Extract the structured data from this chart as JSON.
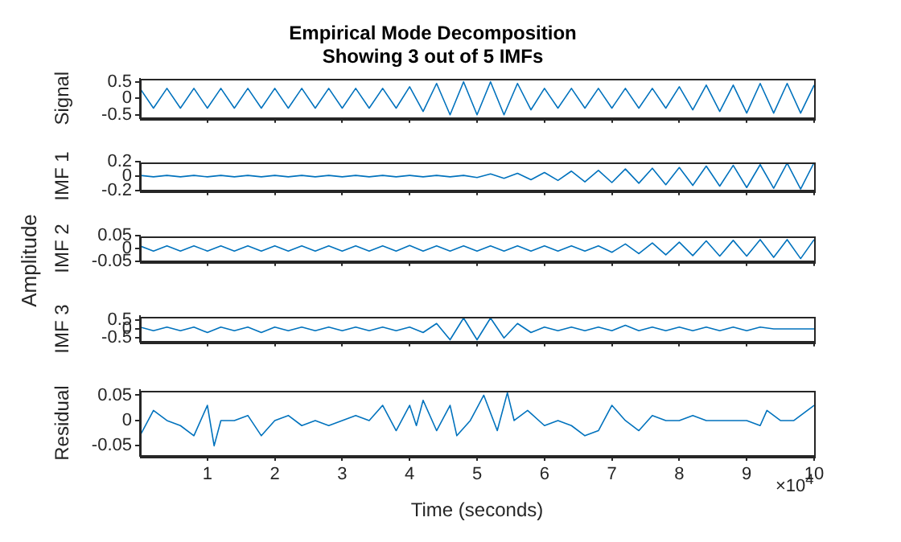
{
  "chart_data": [
    {
      "type": "line",
      "title": "Empirical Mode Decomposition",
      "subtitle": "Showing 3 out of 5 IMFs",
      "ylabel": "Signal",
      "tick_labels": "y",
      "xlim": [
        0,
        10
      ],
      "xticks": [
        1,
        2,
        3,
        4,
        5,
        6,
        7,
        8,
        9,
        10
      ],
      "ylim": [
        -0.6,
        0.6
      ],
      "yticks": [
        -0.5,
        0,
        0.5
      ],
      "x": [
        0,
        0.2,
        0.4,
        0.6,
        0.8,
        1,
        1.2,
        1.4,
        1.6,
        1.8,
        2,
        2.2,
        2.4,
        2.6,
        2.8,
        3,
        3.2,
        3.4,
        3.6,
        3.8,
        4,
        4.2,
        4.4,
        4.6,
        4.8,
        5,
        5.2,
        5.4,
        5.6,
        5.8,
        6,
        6.2,
        6.4,
        6.6,
        6.8,
        7,
        7.2,
        7.4,
        7.6,
        7.8,
        8,
        8.2,
        8.4,
        8.6,
        8.8,
        9,
        9.2,
        9.4,
        9.6,
        9.8,
        10
      ],
      "series": [
        {
          "color": "#0072bd",
          "values": [
            0.3,
            -0.3,
            0.3,
            -0.3,
            0.3,
            -0.3,
            0.3,
            -0.3,
            0.3,
            -0.3,
            0.3,
            -0.3,
            0.3,
            -0.3,
            0.3,
            -0.3,
            0.3,
            -0.3,
            0.3,
            -0.3,
            0.35,
            -0.4,
            0.45,
            -0.5,
            0.5,
            -0.5,
            0.5,
            -0.5,
            0.45,
            -0.35,
            0.3,
            -0.3,
            0.3,
            -0.3,
            0.3,
            -0.3,
            0.3,
            -0.3,
            0.3,
            -0.3,
            0.35,
            -0.35,
            0.4,
            -0.4,
            0.4,
            -0.45,
            0.45,
            -0.45,
            0.45,
            -0.45,
            0.4
          ]
        }
      ]
    },
    {
      "type": "line",
      "ylabel": "IMF 1",
      "tick_labels": "y",
      "xlim": [
        0,
        10
      ],
      "xticks": [
        1,
        2,
        3,
        4,
        5,
        6,
        7,
        8,
        9,
        10
      ],
      "ylim": [
        -0.2,
        0.2
      ],
      "yticks": [
        -0.2,
        0,
        0.2
      ],
      "x": [
        0,
        0.2,
        0.4,
        0.6,
        0.8,
        1,
        1.2,
        1.4,
        1.6,
        1.8,
        2,
        2.2,
        2.4,
        2.6,
        2.8,
        3,
        3.2,
        3.4,
        3.6,
        3.8,
        4,
        4.2,
        4.4,
        4.6,
        4.8,
        5,
        5.2,
        5.4,
        5.6,
        5.8,
        6,
        6.2,
        6.4,
        6.6,
        6.8,
        7,
        7.2,
        7.4,
        7.6,
        7.8,
        8,
        8.2,
        8.4,
        8.6,
        8.8,
        9,
        9.2,
        9.4,
        9.6,
        9.8,
        10
      ],
      "series": [
        {
          "color": "#0072bd",
          "values": [
            0.01,
            -0.01,
            0.01,
            -0.01,
            0.01,
            -0.01,
            0.01,
            -0.01,
            0.01,
            -0.01,
            0.01,
            -0.01,
            0.01,
            -0.01,
            0.01,
            -0.01,
            0.01,
            -0.01,
            0.01,
            -0.01,
            0.01,
            -0.01,
            0.01,
            -0.01,
            0.01,
            -0.02,
            0.03,
            -0.03,
            0.04,
            -0.05,
            0.05,
            -0.06,
            0.07,
            -0.08,
            0.08,
            -0.09,
            0.1,
            -0.1,
            0.11,
            -0.12,
            0.12,
            -0.13,
            0.14,
            -0.14,
            0.15,
            -0.16,
            0.16,
            -0.17,
            0.18,
            -0.18,
            0.19
          ]
        }
      ]
    },
    {
      "type": "line",
      "ylabel": "IMF 2",
      "tick_labels": "y",
      "annotations": [
        "Amplitude"
      ],
      "xlim": [
        0,
        10
      ],
      "xticks": [
        1,
        2,
        3,
        4,
        5,
        6,
        7,
        8,
        9,
        10
      ],
      "ylim": [
        -0.05,
        0.05
      ],
      "yticks": [
        -0.05,
        0,
        0.05
      ],
      "x": [
        0,
        0.2,
        0.4,
        0.6,
        0.8,
        1,
        1.2,
        1.4,
        1.6,
        1.8,
        2,
        2.2,
        2.4,
        2.6,
        2.8,
        3,
        3.2,
        3.4,
        3.6,
        3.8,
        4,
        4.2,
        4.4,
        4.6,
        4.8,
        5,
        5.2,
        5.4,
        5.6,
        5.8,
        6,
        6.2,
        6.4,
        6.6,
        6.8,
        7,
        7.2,
        7.4,
        7.6,
        7.8,
        8,
        8.2,
        8.4,
        8.6,
        8.8,
        9,
        9.2,
        9.4,
        9.6,
        9.8,
        10
      ],
      "series": [
        {
          "color": "#0072bd",
          "values": [
            0.01,
            -0.01,
            0.01,
            -0.01,
            0.01,
            -0.01,
            0.01,
            -0.01,
            0.01,
            -0.01,
            0.01,
            -0.01,
            0.01,
            -0.01,
            0.01,
            -0.01,
            0.01,
            -0.01,
            0.01,
            -0.01,
            0.012,
            -0.01,
            0.01,
            -0.01,
            0.01,
            -0.01,
            0.01,
            -0.01,
            0.01,
            -0.01,
            0.01,
            -0.01,
            0.01,
            -0.01,
            0.01,
            -0.015,
            0.018,
            -0.02,
            0.022,
            -0.025,
            0.025,
            -0.028,
            0.03,
            -0.03,
            0.032,
            -0.03,
            0.035,
            -0.035,
            0.035,
            -0.04,
            0.035
          ]
        }
      ]
    },
    {
      "type": "line",
      "ylabel": "IMF 3",
      "tick_labels": "y",
      "xlim": [
        0,
        10
      ],
      "xticks": [
        1,
        2,
        3,
        4,
        5,
        6,
        7,
        8,
        9,
        10
      ],
      "ylim": [
        -0.7,
        0.7
      ],
      "yticks": [
        -0.5,
        0,
        0.5
      ],
      "x": [
        0,
        0.2,
        0.4,
        0.6,
        0.8,
        1,
        1.2,
        1.4,
        1.6,
        1.8,
        2,
        2.2,
        2.4,
        2.6,
        2.8,
        3,
        3.2,
        3.4,
        3.6,
        3.8,
        4,
        4.2,
        4.4,
        4.6,
        4.8,
        5,
        5.2,
        5.4,
        5.6,
        5.8,
        6,
        6.2,
        6.4,
        6.6,
        6.8,
        7,
        7.2,
        7.4,
        7.6,
        7.8,
        8,
        8.2,
        8.4,
        8.6,
        8.8,
        9,
        9.2,
        9.4,
        9.6,
        9.8,
        10
      ],
      "series": [
        {
          "color": "#0072bd",
          "values": [
            0.1,
            -0.1,
            0.1,
            -0.1,
            0.1,
            -0.2,
            0.1,
            -0.1,
            0.1,
            -0.2,
            0.1,
            -0.1,
            0.1,
            -0.1,
            0.1,
            -0.1,
            0.1,
            -0.1,
            0.1,
            -0.1,
            0.1,
            -0.2,
            0.3,
            -0.6,
            0.6,
            -0.6,
            0.6,
            -0.5,
            0.3,
            -0.2,
            0.1,
            -0.1,
            0.1,
            -0.1,
            0.1,
            -0.1,
            0.2,
            -0.1,
            0.1,
            -0.1,
            0.1,
            -0.1,
            0.1,
            -0.1,
            0.1,
            -0.1,
            0.1,
            0,
            0,
            0,
            0
          ]
        }
      ]
    },
    {
      "type": "line",
      "ylabel": "Residual",
      "xlabel": "Time (seconds)",
      "annotations": [
        "×10$^{4}$"
      ],
      "xlim": [
        0,
        10
      ],
      "xticks": [
        1,
        2,
        3,
        4,
        5,
        6,
        7,
        8,
        9,
        10
      ],
      "ylim": [
        -0.07,
        0.06
      ],
      "yticks": [
        -0.05,
        0,
        0.05
      ],
      "x": [
        0,
        0.2,
        0.4,
        0.6,
        0.8,
        1,
        1.1,
        1.2,
        1.4,
        1.6,
        1.8,
        2,
        2.2,
        2.4,
        2.6,
        2.8,
        3,
        3.2,
        3.4,
        3.6,
        3.8,
        4,
        4.1,
        4.2,
        4.4,
        4.6,
        4.7,
        4.9,
        5.1,
        5.3,
        5.45,
        5.55,
        5.75,
        6,
        6.2,
        6.4,
        6.6,
        6.8,
        7,
        7.2,
        7.4,
        7.6,
        7.8,
        8,
        8.2,
        8.4,
        8.6,
        8.8,
        9,
        9.2,
        9.3,
        9.5,
        9.7,
        10
      ],
      "series": [
        {
          "color": "#0072bd",
          "values": [
            -0.03,
            0.02,
            0,
            -0.01,
            -0.03,
            0.03,
            -0.05,
            0,
            0,
            0.01,
            -0.03,
            0,
            0.01,
            -0.01,
            0,
            -0.01,
            0,
            0.01,
            0,
            0.03,
            -0.02,
            0.03,
            -0.01,
            0.04,
            -0.02,
            0.03,
            -0.03,
            0,
            0.05,
            -0.02,
            0.055,
            0,
            0.02,
            -0.01,
            0,
            -0.01,
            -0.03,
            -0.02,
            0.03,
            0,
            -0.02,
            0.01,
            0,
            0,
            0.01,
            0,
            0,
            0,
            0,
            -0.01,
            0.02,
            0,
            0,
            0.03
          ]
        }
      ]
    }
  ]
}
